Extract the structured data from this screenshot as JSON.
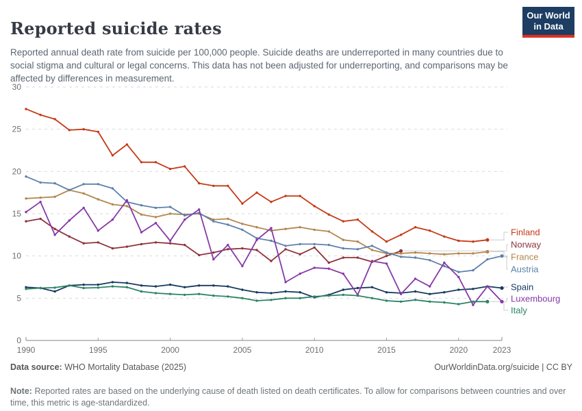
{
  "header": {
    "title": "Reported suicide rates",
    "logo": {
      "line1": "Our World",
      "line2": "in Data",
      "bg": "#1d3d63",
      "accent": "#e0301e"
    }
  },
  "subtitle": "Reported annual death rate from suicide per 100,000 people. Suicide deaths are underreported in many countries due to social stigma and cultural or legal concerns. This data has not been adjusted for underreporting, and comparisons may be affected by differences in measurement.",
  "chart_data": {
    "type": "line",
    "title": "Reported suicide rates",
    "ylabel": "Reported annual death rate from suicide per 100,000 people",
    "xlim": [
      1990,
      2023
    ],
    "ylim": [
      0,
      30
    ],
    "x_ticks": [
      1990,
      1995,
      2000,
      2005,
      2010,
      2015,
      2020,
      2023
    ],
    "y_ticks": [
      0,
      5,
      10,
      15,
      20,
      25,
      30
    ],
    "grid": "horizontal dashed gridlines, solid x-axis at 0",
    "legend_position": "labels at right edge of lines",
    "tick_color": "#6e6e6e",
    "grid_color": "#dadada",
    "axis_color": "#9c9c9c",
    "series": [
      {
        "name": "Finland",
        "color": "#c53a16",
        "start_year": 1990,
        "values": [
          27.4,
          26.7,
          26.2,
          24.9,
          25.0,
          24.7,
          21.9,
          23.2,
          21.1,
          21.1,
          20.3,
          20.6,
          18.6,
          18.3,
          18.3,
          16.2,
          17.5,
          16.4,
          17.1,
          17.1,
          15.9,
          14.9,
          14.1,
          14.3,
          12.9,
          11.7,
          12.5,
          13.4,
          13.0,
          12.3,
          11.8,
          11.7,
          11.9
        ]
      },
      {
        "name": "Norway",
        "color": "#8f323c",
        "start_year": 1990,
        "values": [
          14.1,
          14.4,
          13.2,
          12.3,
          11.5,
          11.6,
          10.9,
          11.1,
          11.4,
          11.6,
          11.5,
          11.3,
          10.1,
          10.4,
          10.8,
          10.9,
          10.7,
          9.4,
          10.8,
          10.2,
          11.0,
          9.2,
          9.8,
          9.8,
          9.3,
          10.0,
          10.6
        ]
      },
      {
        "name": "France",
        "color": "#b3874e",
        "start_year": 1990,
        "values": [
          16.8,
          16.9,
          17.0,
          17.8,
          17.4,
          16.7,
          16.1,
          15.9,
          14.9,
          14.6,
          15.0,
          14.9,
          15.0,
          14.3,
          14.4,
          13.8,
          13.4,
          13.0,
          13.2,
          13.4,
          13.1,
          12.9,
          11.9,
          11.7,
          10.7,
          10.3,
          10.3,
          10.4,
          10.3,
          10.2,
          10.3,
          10.3,
          10.5
        ]
      },
      {
        "name": "Austria",
        "color": "#5e81ab",
        "start_year": 1990,
        "values": [
          19.4,
          18.7,
          18.6,
          17.8,
          18.5,
          18.5,
          18.0,
          16.4,
          16.0,
          15.7,
          15.8,
          14.8,
          15.1,
          14.1,
          13.7,
          13.1,
          12.1,
          11.8,
          11.2,
          11.4,
          11.4,
          11.3,
          10.9,
          10.8,
          11.2,
          10.4,
          9.9,
          9.8,
          9.5,
          8.8,
          8.1,
          8.3,
          9.6,
          10.0
        ]
      },
      {
        "name": "Spain",
        "color": "#173a60",
        "start_year": 1990,
        "values": [
          6.3,
          6.2,
          5.8,
          6.5,
          6.6,
          6.6,
          6.9,
          6.8,
          6.5,
          6.4,
          6.6,
          6.3,
          6.5,
          6.5,
          6.4,
          6.0,
          5.7,
          5.6,
          5.8,
          5.7,
          5.1,
          5.4,
          6.0,
          6.2,
          6.3,
          5.7,
          5.6,
          5.8,
          5.5,
          5.7,
          6.0,
          6.1,
          6.4,
          6.2
        ]
      },
      {
        "name": "Luxembourg",
        "color": "#8639a8",
        "start_year": 1990,
        "values": [
          15.2,
          16.4,
          12.5,
          14.2,
          15.7,
          13.0,
          14.3,
          16.6,
          12.8,
          13.9,
          11.8,
          14.3,
          15.5,
          9.6,
          11.3,
          8.8,
          11.9,
          13.3,
          6.9,
          7.9,
          8.6,
          8.5,
          7.9,
          5.4,
          9.4,
          9.1,
          5.5,
          7.3,
          6.4,
          9.2,
          7.5,
          4.2,
          6.4,
          4.6
        ]
      },
      {
        "name": "Italy",
        "color": "#2c8465",
        "start_year": 1990,
        "values": [
          6.1,
          6.2,
          6.25,
          6.5,
          6.2,
          6.25,
          6.4,
          6.3,
          5.8,
          5.6,
          5.5,
          5.4,
          5.5,
          5.3,
          5.2,
          5.0,
          4.7,
          4.8,
          5.0,
          5.0,
          5.2,
          5.3,
          5.4,
          5.3,
          5.0,
          4.7,
          4.6,
          4.8,
          4.6,
          4.5,
          4.3,
          4.6,
          4.6
        ]
      }
    ]
  },
  "footer": {
    "source_label": "Data source:",
    "source_text": "WHO Mortality Database (2025)",
    "link_text": "OurWorldinData.org/suicide | CC BY",
    "note_label": "Note:",
    "note_text": "Reported rates are based on the underlying cause of death listed on death certificates. To allow for comparisons between countries and over time, this metric is age-standardized."
  }
}
